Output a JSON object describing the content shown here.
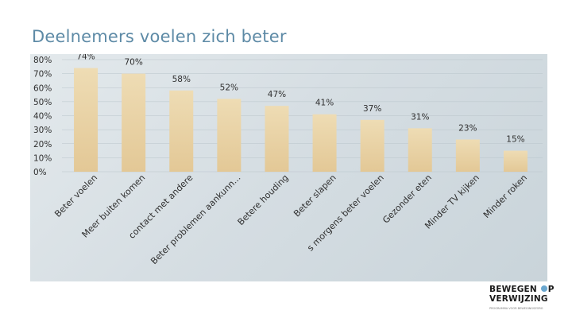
{
  "page": {
    "title": "Deelnemers voelen zich beter"
  },
  "logo": {
    "line1_a": "BEWEGEN",
    "line1_b": "P",
    "line2": "VERWIJZING",
    "tagline": "PROGRAMMA VOOR BEWEGINGSZORG"
  },
  "colors": {
    "bar_top": "#eedcb4",
    "bar_bottom": "#e3c896",
    "text": "#2f2f2f",
    "grid": "#b9c4ca"
  },
  "chart_data": {
    "type": "bar",
    "title": "Deelnemers voelen zich beter",
    "xlabel": "",
    "ylabel": "",
    "ylim": [
      0,
      80
    ],
    "yticks": [
      "0%",
      "10%",
      "20%",
      "30%",
      "40%",
      "50%",
      "60%",
      "70%",
      "80%"
    ],
    "categories": [
      "Beter voelen",
      "Meer buiten komen",
      "contact met andere",
      "Beter problemen aankunn...",
      "Betere houding",
      "Beter slapen",
      "s morgens beter voelen",
      "Gezonder eten",
      "Minder TV kijken",
      "Minder roken"
    ],
    "values": [
      74,
      70,
      58,
      52,
      47,
      41,
      37,
      31,
      23,
      15
    ],
    "data_labels": [
      "74%",
      "70%",
      "58%",
      "52%",
      "47%",
      "41%",
      "37%",
      "31%",
      "23%",
      "15%"
    ]
  }
}
